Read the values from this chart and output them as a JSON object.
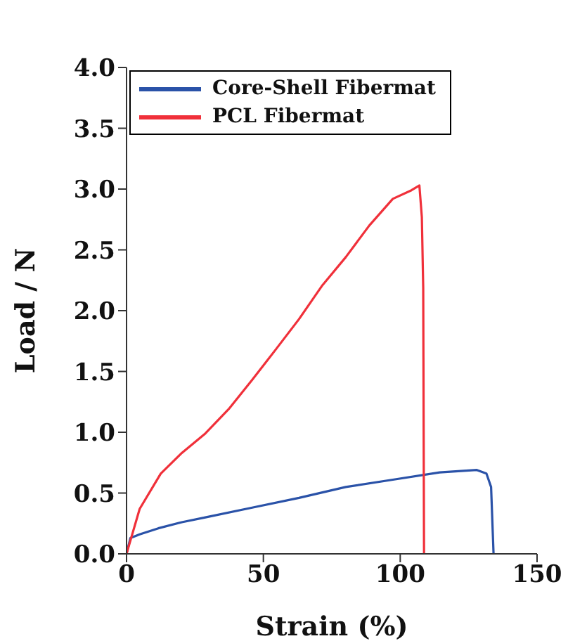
{
  "chart_data": {
    "type": "line",
    "xlabel": "Strain (%)",
    "ylabel": "Load / N",
    "xlim": [
      0,
      150
    ],
    "xticks": [
      0,
      50,
      100,
      150
    ],
    "ylim": [
      0,
      4
    ],
    "yticks": [
      {
        "value": 0,
        "label": "0.0"
      },
      {
        "value": 0.5,
        "label": "0.5"
      },
      {
        "value": 1,
        "label": "1.0"
      },
      {
        "value": 1.5,
        "label": "1.5"
      },
      {
        "value": 2,
        "label": "2.0"
      },
      {
        "value": 2.5,
        "label": "2.5"
      },
      {
        "value": 3,
        "label": "3.0"
      },
      {
        "value": 3.5,
        "label": "3.5"
      },
      {
        "value": 4,
        "label": "4.0"
      }
    ],
    "grid": false,
    "legend": "top left",
    "marker": "none",
    "line_style": "solid",
    "series": [
      {
        "name": "Core-Shell Fibermat",
        "color": "#2a52a8",
        "x": [
          0,
          1.4,
          4.8,
          11.6,
          20.2,
          28.8,
          45.9,
          63,
          80.1,
          97.3,
          114.4,
          128,
          131.5,
          133.2,
          134.1
        ],
        "values": [
          0,
          0.13,
          0.16,
          0.21,
          0.26,
          0.3,
          0.38,
          0.46,
          0.55,
          0.61,
          0.67,
          0.69,
          0.66,
          0.55,
          0
        ]
      },
      {
        "name": "PCL Fibermat",
        "color": "#f0303a",
        "x": [
          0,
          4.8,
          12.5,
          20.2,
          28.8,
          37.3,
          45.9,
          54.5,
          63,
          71.6,
          80.1,
          88.7,
          97.3,
          104.1,
          107,
          107.9,
          108.4,
          108.7
        ],
        "values": [
          0,
          0.37,
          0.66,
          0.83,
          0.99,
          1.19,
          1.43,
          1.68,
          1.93,
          2.21,
          2.44,
          2.7,
          2.92,
          2.99,
          3.03,
          2.77,
          2.19,
          0
        ]
      }
    ]
  }
}
